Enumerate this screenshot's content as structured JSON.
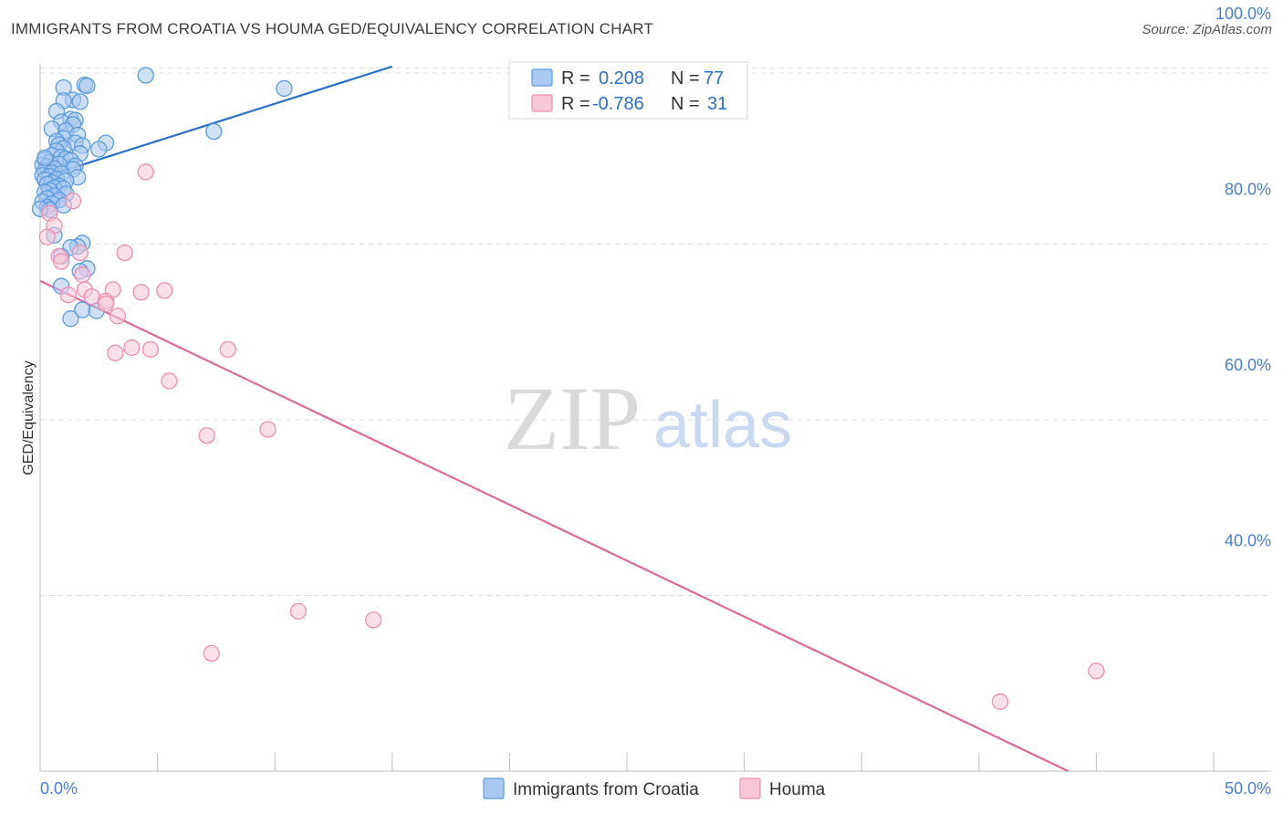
{
  "header": {
    "title": "IMMIGRANTS FROM CROATIA VS HOUMA GED/EQUIVALENCY CORRELATION CHART",
    "source": "Source: ZipAtlas.com"
  },
  "watermark": {
    "zip": "ZIP",
    "atlas": "atlas"
  },
  "colors": {
    "blue": "#5b9bdf",
    "blue_fill": "#a9c9f0",
    "blue_line": "#2a6fce",
    "pink": "#ee8fb0",
    "pink_fill": "#f7c6d7",
    "pink_line": "#e0699a",
    "grid": "#dcdcdc",
    "tick_text": "#4a7fd0"
  },
  "legend": {
    "series": [
      {
        "r_label": "R =",
        "r_value": "0.208",
        "n_label": "N =",
        "n_value": "77"
      },
      {
        "r_label": "R =",
        "r_value": "-0.786",
        "n_label": "N =",
        "n_value": "31"
      }
    ]
  },
  "bottom_legend": [
    "Immigrants from Croatia",
    "Houma"
  ],
  "chart_data": {
    "type": "scatter",
    "title": "IMMIGRANTS FROM CROATIA VS HOUMA GED/EQUIVALENCY CORRELATION CHART",
    "xlabel": "",
    "ylabel": "GED/Equivalency",
    "xlim": [
      0,
      50
    ],
    "ylim": [
      20,
      100.5
    ],
    "x_tick_labels": [
      "0.0%",
      "50.0%"
    ],
    "y_ticks": [
      40,
      60,
      80,
      100
    ],
    "y_tick_labels": [
      "40.0%",
      "60.0%",
      "80.0%",
      "100.0%"
    ],
    "grid": true,
    "series": [
      {
        "name": "Immigrants from Croatia",
        "color": "#5b9bdf",
        "trend": {
          "x": [
            0,
            15
          ],
          "y": [
            87.5,
            100.2
          ]
        },
        "points": [
          [
            4.5,
            99.2
          ],
          [
            1.9,
            98.1
          ],
          [
            2.0,
            98.0
          ],
          [
            1.0,
            97.8
          ],
          [
            10.4,
            97.7
          ],
          [
            1.4,
            96.4
          ],
          [
            1.0,
            96.3
          ],
          [
            1.7,
            96.2
          ],
          [
            0.7,
            95.1
          ],
          [
            1.3,
            94.2
          ],
          [
            1.5,
            94.1
          ],
          [
            0.9,
            93.9
          ],
          [
            1.4,
            93.6
          ],
          [
            0.5,
            93.1
          ],
          [
            7.4,
            92.8
          ],
          [
            1.1,
            92.9
          ],
          [
            1.6,
            92.4
          ],
          [
            1.0,
            92.0
          ],
          [
            0.7,
            91.7
          ],
          [
            2.8,
            91.5
          ],
          [
            1.5,
            91.5
          ],
          [
            0.8,
            91.3
          ],
          [
            1.8,
            91.2
          ],
          [
            1.0,
            90.9
          ],
          [
            2.5,
            90.8
          ],
          [
            0.7,
            90.6
          ],
          [
            1.7,
            90.3
          ],
          [
            0.5,
            90.1
          ],
          [
            0.9,
            89.9
          ],
          [
            1.1,
            89.7
          ],
          [
            0.2,
            89.6
          ],
          [
            1.3,
            89.5
          ],
          [
            0.4,
            89.3
          ],
          [
            0.8,
            89.1
          ],
          [
            0.1,
            89.0
          ],
          [
            1.5,
            88.9
          ],
          [
            0.3,
            88.8
          ],
          [
            0.6,
            88.6
          ],
          [
            1.4,
            88.5
          ],
          [
            0.2,
            88.3
          ],
          [
            0.5,
            88.1
          ],
          [
            0.9,
            88.0
          ],
          [
            0.1,
            87.8
          ],
          [
            0.4,
            87.7
          ],
          [
            1.6,
            87.6
          ],
          [
            0.7,
            87.4
          ],
          [
            0.2,
            87.3
          ],
          [
            1.1,
            87.2
          ],
          [
            0.5,
            87.0
          ],
          [
            0.3,
            86.8
          ],
          [
            0.8,
            86.6
          ],
          [
            0.6,
            86.4
          ],
          [
            1.0,
            86.3
          ],
          [
            0.4,
            86.1
          ],
          [
            0.2,
            85.9
          ],
          [
            1.1,
            85.7
          ],
          [
            0.6,
            85.5
          ],
          [
            0.3,
            85.2
          ],
          [
            0.8,
            85.0
          ],
          [
            0.1,
            84.8
          ],
          [
            0.5,
            84.6
          ],
          [
            1.0,
            84.4
          ],
          [
            0.3,
            84.2
          ],
          [
            0.4,
            83.9
          ],
          [
            0.0,
            84.0
          ],
          [
            0.6,
            81.0
          ],
          [
            1.8,
            80.1
          ],
          [
            1.6,
            79.7
          ],
          [
            1.3,
            79.6
          ],
          [
            0.9,
            78.6
          ],
          [
            2.0,
            77.2
          ],
          [
            1.7,
            76.9
          ],
          [
            0.9,
            75.2
          ],
          [
            1.8,
            72.5
          ],
          [
            2.4,
            72.4
          ],
          [
            1.3,
            71.5
          ],
          [
            0.2,
            89.8
          ]
        ]
      },
      {
        "name": "Houma",
        "color": "#ee8fb0",
        "trend": {
          "x": [
            0,
            43.8
          ],
          "y": [
            75.8,
            20
          ]
        },
        "points": [
          [
            4.5,
            88.2
          ],
          [
            1.4,
            84.9
          ],
          [
            0.4,
            83.5
          ],
          [
            0.6,
            82.1
          ],
          [
            0.3,
            80.8
          ],
          [
            3.6,
            79.0
          ],
          [
            1.7,
            79.0
          ],
          [
            0.8,
            78.6
          ],
          [
            0.9,
            78.0
          ],
          [
            1.8,
            76.5
          ],
          [
            1.9,
            74.8
          ],
          [
            3.1,
            74.8
          ],
          [
            5.3,
            74.7
          ],
          [
            4.3,
            74.5
          ],
          [
            1.2,
            74.2
          ],
          [
            2.2,
            74.0
          ],
          [
            2.8,
            73.5
          ],
          [
            2.8,
            73.2
          ],
          [
            3.3,
            71.8
          ],
          [
            3.9,
            68.2
          ],
          [
            4.7,
            68.0
          ],
          [
            8.0,
            68.0
          ],
          [
            3.2,
            67.6
          ],
          [
            5.5,
            64.4
          ],
          [
            9.7,
            58.9
          ],
          [
            7.1,
            58.2
          ],
          [
            11.0,
            38.2
          ],
          [
            14.2,
            37.2
          ],
          [
            7.3,
            33.4
          ],
          [
            45.0,
            31.4
          ],
          [
            40.9,
            27.9
          ]
        ]
      }
    ]
  }
}
